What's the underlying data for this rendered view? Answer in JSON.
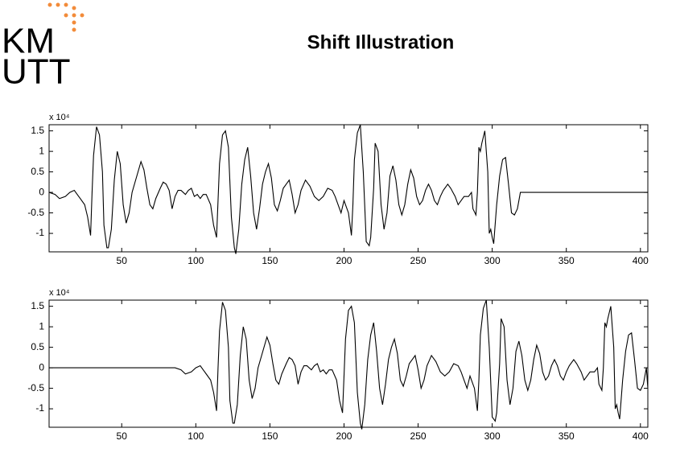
{
  "logo": [
    "KM",
    "UTT"
  ],
  "title": "Shift Illustration",
  "chart_data": [
    {
      "type": "line",
      "y_multiplier": "x 10⁴",
      "xlim": [
        1,
        405
      ],
      "ylim": [
        -1.45,
        1.65
      ],
      "xticks": [
        50,
        100,
        150,
        200,
        250,
        300,
        350,
        400
      ],
      "yticks": [
        -1,
        -0.5,
        0,
        0.5,
        1,
        1.5
      ],
      "x": [
        1,
        5,
        8,
        12,
        15,
        18,
        20,
        22,
        25,
        27,
        29,
        30,
        31,
        33,
        35,
        37,
        38,
        40,
        41,
        43,
        45,
        47,
        49,
        51,
        53,
        55,
        57,
        59,
        61,
        63,
        65,
        67,
        69,
        71,
        73,
        76,
        78,
        80,
        82,
        84,
        86,
        88,
        90,
        93,
        95,
        97,
        99,
        101,
        103,
        105,
        107,
        110,
        112,
        114,
        115,
        116,
        118,
        120,
        122,
        124,
        126,
        127,
        129,
        131,
        133,
        135,
        137,
        139,
        141,
        143,
        145,
        147,
        149,
        151,
        153,
        155,
        157,
        159,
        161,
        163,
        165,
        167,
        169,
        171,
        174,
        177,
        180,
        183,
        186,
        189,
        192,
        194,
        196,
        198,
        200,
        203,
        205,
        206,
        207,
        209,
        211,
        213,
        215,
        216,
        217,
        218,
        220,
        221,
        223,
        225,
        227,
        229,
        231,
        233,
        235,
        237,
        239,
        241,
        243,
        245,
        247,
        249,
        251,
        253,
        255,
        257,
        259,
        261,
        263,
        265,
        267,
        270,
        272,
        275,
        277,
        279,
        281,
        284,
        286,
        287,
        289,
        290,
        291,
        292,
        293,
        295,
        297,
        298,
        299,
        300,
        301,
        303,
        305,
        307,
        309,
        311,
        313,
        315,
        317,
        319,
        320,
        405
      ],
      "series": [
        {
          "color": "#000000",
          "values": [
            0,
            -0.05,
            -0.15,
            -0.1,
            0,
            0.05,
            -0.05,
            -0.15,
            -0.3,
            -0.6,
            -1.05,
            0,
            0.9,
            1.6,
            1.4,
            0.5,
            -0.8,
            -1.35,
            -1.35,
            -0.9,
            0.3,
            1.0,
            0.7,
            -0.3,
            -0.75,
            -0.5,
            0,
            0.25,
            0.5,
            0.75,
            0.55,
            0.1,
            -0.3,
            -0.4,
            -0.15,
            0.1,
            0.25,
            0.2,
            0.05,
            -0.4,
            -0.1,
            0.05,
            0.05,
            -0.05,
            0.05,
            0.1,
            -0.1,
            -0.05,
            -0.15,
            -0.05,
            -0.05,
            -0.3,
            -0.8,
            -1.1,
            -0.2,
            0.7,
            1.4,
            1.5,
            1.1,
            -0.6,
            -1.35,
            -1.5,
            -0.9,
            0.2,
            0.8,
            1.1,
            0.4,
            -0.5,
            -0.9,
            -0.4,
            0.2,
            0.5,
            0.7,
            0.35,
            -0.3,
            -0.45,
            -0.2,
            0.1,
            0.2,
            0.3,
            -0.05,
            -0.5,
            -0.3,
            0.05,
            0.3,
            0.15,
            -0.1,
            -0.2,
            -0.1,
            0.1,
            0.05,
            -0.1,
            -0.3,
            -0.5,
            -0.2,
            -0.5,
            -1.05,
            -0.3,
            0.8,
            1.45,
            1.65,
            0.5,
            -1.2,
            -1.25,
            -1.3,
            -1.1,
            0.1,
            1.2,
            1.0,
            -0.3,
            -0.9,
            -0.5,
            0.4,
            0.65,
            0.3,
            -0.3,
            -0.55,
            -0.3,
            0.2,
            0.55,
            0.35,
            -0.1,
            -0.3,
            -0.2,
            0.05,
            0.2,
            0.05,
            -0.2,
            -0.3,
            -0.1,
            0.05,
            0.2,
            0.1,
            -0.1,
            -0.3,
            -0.2,
            -0.1,
            -0.1,
            0,
            -0.4,
            -0.55,
            0,
            1.1,
            1.0,
            1.2,
            1.5,
            0.5,
            -1.0,
            -0.9,
            -1.1,
            -1.25,
            -0.3,
            0.4,
            0.8,
            0.85,
            0.2,
            -0.5,
            -0.55,
            -0.4,
            0,
            0,
            0
          ]
        }
      ]
    },
    {
      "type": "line",
      "y_multiplier": "x 10⁴",
      "xlim": [
        1,
        405
      ],
      "ylim": [
        -1.45,
        1.65
      ],
      "xticks": [
        50,
        100,
        150,
        200,
        250,
        300,
        350,
        400
      ],
      "yticks": [
        -1,
        -0.5,
        0,
        0.5,
        1,
        1.5
      ],
      "x": [
        1,
        86,
        90,
        93,
        97,
        100,
        103,
        105,
        107,
        110,
        112,
        114,
        115,
        116,
        118,
        120,
        122,
        123,
        125,
        126,
        128,
        130,
        132,
        134,
        136,
        138,
        140,
        142,
        144,
        146,
        148,
        150,
        152,
        154,
        156,
        158,
        161,
        163,
        165,
        167,
        169,
        171,
        173,
        175,
        178,
        180,
        182,
        184,
        186,
        188,
        190,
        192,
        195,
        197,
        199,
        200,
        201,
        203,
        205,
        207,
        209,
        211,
        212,
        214,
        216,
        218,
        220,
        222,
        224,
        226,
        228,
        230,
        232,
        234,
        236,
        238,
        240,
        242,
        244,
        246,
        248,
        250,
        252,
        254,
        256,
        259,
        262,
        265,
        268,
        271,
        274,
        277,
        279,
        281,
        283,
        285,
        288,
        290,
        291,
        292,
        294,
        296,
        298,
        300,
        301,
        302,
        303,
        305,
        306,
        308,
        310,
        312,
        314,
        316,
        318,
        320,
        322,
        324,
        326,
        328,
        330,
        332,
        334,
        336,
        338,
        340,
        342,
        344,
        346,
        348,
        350,
        352,
        355,
        357,
        360,
        362,
        364,
        366,
        369,
        371,
        372,
        374,
        375,
        376,
        377,
        378,
        380,
        382,
        383,
        384,
        385,
        386,
        388,
        390,
        392,
        394,
        396,
        398,
        400,
        402,
        404,
        405
      ],
      "series": [
        {
          "color": "#000000",
          "values": [
            0,
            0,
            -0.05,
            -0.15,
            -0.1,
            0,
            0.05,
            -0.05,
            -0.15,
            -0.3,
            -0.6,
            -1.05,
            0,
            0.9,
            1.6,
            1.4,
            0.5,
            -0.8,
            -1.35,
            -1.35,
            -0.9,
            0.3,
            1.0,
            0.7,
            -0.3,
            -0.75,
            -0.5,
            0,
            0.25,
            0.5,
            0.75,
            0.55,
            0.1,
            -0.3,
            -0.4,
            -0.15,
            0.1,
            0.25,
            0.2,
            0.05,
            -0.4,
            -0.1,
            0.05,
            0.05,
            -0.05,
            0.05,
            0.1,
            -0.1,
            -0.05,
            -0.15,
            -0.05,
            -0.05,
            -0.3,
            -0.8,
            -1.1,
            -0.2,
            0.7,
            1.4,
            1.5,
            1.1,
            -0.6,
            -1.35,
            -1.5,
            -0.9,
            0.2,
            0.8,
            1.1,
            0.4,
            -0.5,
            -0.9,
            -0.4,
            0.2,
            0.5,
            0.7,
            0.35,
            -0.3,
            -0.45,
            -0.2,
            0.1,
            0.2,
            0.3,
            -0.05,
            -0.5,
            -0.3,
            0.05,
            0.3,
            0.15,
            -0.1,
            -0.2,
            -0.1,
            0.1,
            0.05,
            -0.1,
            -0.3,
            -0.5,
            -0.2,
            -0.5,
            -1.05,
            -0.3,
            0.8,
            1.45,
            1.65,
            0.5,
            -1.2,
            -1.25,
            -1.3,
            -1.1,
            0.1,
            1.2,
            1.0,
            -0.3,
            -0.9,
            -0.5,
            0.4,
            0.65,
            0.3,
            -0.3,
            -0.55,
            -0.3,
            0.2,
            0.55,
            0.35,
            -0.1,
            -0.3,
            -0.2,
            0.05,
            0.2,
            0.05,
            -0.2,
            -0.3,
            -0.1,
            0.05,
            0.2,
            0.1,
            -0.1,
            -0.3,
            -0.2,
            -0.1,
            -0.1,
            0,
            -0.4,
            -0.55,
            0,
            1.1,
            1.0,
            1.2,
            1.5,
            0.5,
            -1.0,
            -0.9,
            -1.1,
            -1.25,
            -0.3,
            0.4,
            0.8,
            0.85,
            0.2,
            -0.5,
            -0.55,
            -0.4,
            0,
            -0.5
          ]
        }
      ]
    }
  ]
}
